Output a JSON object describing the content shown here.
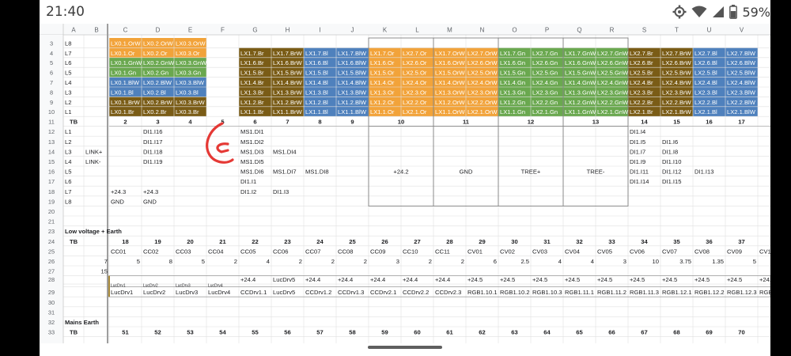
{
  "status_bar": {
    "time": "21:40",
    "battery_percent": "59%",
    "icons": [
      "gear-icon",
      "wifi-icon",
      "signal-icon",
      "battery-icon"
    ]
  },
  "colors": {
    "orange": "#f2a33a",
    "brown": "#7a5c16",
    "green": "#6aa84f",
    "blue": "#4f81bd",
    "header_bg": "#f8f9fa",
    "grid": "#e0e0e0",
    "outline": "#808080",
    "text": "#202124",
    "pen": "#e53935"
  },
  "columns": [
    "A",
    "B",
    "C",
    "D",
    "E",
    "F",
    "G",
    "H",
    "I",
    "J",
    "K",
    "L",
    "M",
    "N",
    "O",
    "P",
    "Q",
    "R",
    "S",
    "T",
    "U",
    "V",
    "W",
    "X"
  ],
  "sections": {
    "low_voltage": "Low voltage + Earth",
    "mains": "Mains Earth"
  },
  "rows": [
    {
      "n": "3",
      "cells": {
        "A": "L8",
        "C": "LX0.1.OrW",
        "D": "LX0.2.OrW",
        "E": "LX0.3.OrW"
      }
    },
    {
      "n": "4",
      "cells": {
        "A": "L7",
        "C": "LX0.1.Or",
        "D": "LX0.2.Or",
        "E": "LX0.3.Or",
        "G": "LX1.7.Br",
        "H": "LX1.7.BrW",
        "I": "LX1.7.Bl",
        "J": "LX1.7.BlW",
        "K": "LX1.7.Or",
        "L": "LX2.7.Or",
        "M": "LX1.7.OrW",
        "N": "LX2.7.OrW",
        "O": "LX1.7.Gn",
        "P": "LX2.7.Gn",
        "Q": "LX1.7.GnW",
        "R": "LX2.7.GnW",
        "S": "LX2.7.Br",
        "T": "LX2.7.BrW",
        "U": "LX2.7.Bl",
        "V": "LX2.7.BlW"
      }
    },
    {
      "n": "5",
      "cells": {
        "A": "L6",
        "C": "LX0.1.GnW",
        "D": "LX0.2.GnW",
        "E": "LX0.3.GnW",
        "G": "LX1.6.Br",
        "H": "LX1.6.BrW",
        "I": "LX1.6.Bl",
        "J": "LX1.6.BlW",
        "K": "LX1.6.Or",
        "L": "LX2.6.Or",
        "M": "LX1.6.OrW",
        "N": "LX2.6.OrW",
        "O": "LX1.6.Gn",
        "P": "LX2.6.Gn",
        "Q": "LX1.6.GnW",
        "R": "LX2.6.GnW",
        "S": "LX2.6.Br",
        "T": "LX2.6.BrW",
        "U": "LX2.6.Bl",
        "V": "LX2.6.BlW"
      }
    },
    {
      "n": "6",
      "cells": {
        "A": "L5",
        "C": "LX0.1.Gn",
        "D": "LX0.2.Gn",
        "E": "LX0.3.Gn",
        "G": "LX1.5.Br",
        "H": "LX1.5.BrW",
        "I": "LX1.5.Bl",
        "J": "LX1.5.BlW",
        "K": "LX1.5.Or",
        "L": "LX2.5.Or",
        "M": "LX1.5.OrW",
        "N": "LX2.5.OrW",
        "O": "LX1.5.Gn",
        "P": "LX2.5.Gn",
        "Q": "LX1.5.GnW",
        "R": "LX2.5.GnW",
        "S": "LX2.5.Br",
        "T": "LX2.5.BrW",
        "U": "LX2.5.Bl",
        "V": "LX2.5.BlW"
      }
    },
    {
      "n": "7",
      "cells": {
        "A": "L4",
        "C": "LX0.1.BlW",
        "D": "LX0.2.BlW",
        "E": "LX0.3.BlW",
        "G": "LX1.4.Br",
        "H": "LX1.4.BrW",
        "I": "LX1.4.Bl",
        "J": "LX1.4.BlW",
        "K": "LX1.4.Or",
        "L": "LX2.4.Or",
        "M": "LX1.4.OrW",
        "N": "LX2.4.OrW",
        "O": "LX1.4.Gn",
        "P": "LX2.4.Gn",
        "Q": "LX1.4.GnW",
        "R": "LX2.4.GnW",
        "S": "LX2.4.Br",
        "T": "LX2.4.BrW",
        "U": "LX2.4.Bl",
        "V": "LX2.4.BlW"
      }
    },
    {
      "n": "8",
      "cells": {
        "A": "L3",
        "C": "LX0.1.Bl",
        "D": "LX0.2.Bl",
        "E": "LX0.3.Bl",
        "G": "LX1.3.Br",
        "H": "LX1.3.BrW",
        "I": "LX1.3.Bl",
        "J": "LX1.3.BlW",
        "K": "LX1.3.Or",
        "L": "LX2.3.Or",
        "M": "LX1.3.OrW",
        "N": "LX2.3.OrW",
        "O": "LX1.3.Gn",
        "P": "LX2.3.Gn",
        "Q": "LX1.3.GnW",
        "R": "LX2.3.GnW",
        "S": "LX2.3.Br",
        "T": "LX2.3.BrW",
        "U": "LX2.3.Bl",
        "V": "LX2.3.BlW"
      }
    },
    {
      "n": "9",
      "cells": {
        "A": "L2",
        "C": "LX0.1.BrW",
        "D": "LX0.2.BrW",
        "E": "LX0.3.BrW",
        "G": "LX1.2.Br",
        "H": "LX1.2.BrW",
        "I": "LX1.2.Bl",
        "J": "LX1.2.BlW",
        "K": "LX1.2.Or",
        "L": "LX2.2.Or",
        "M": "LX1.2.OrW",
        "N": "LX2.2.OrW",
        "O": "LX1.2.Gn",
        "P": "LX2.2.Gn",
        "Q": "LX1.2.GnW",
        "R": "LX2.2.GnW",
        "S": "LX2.2.Br",
        "T": "LX2.2.BrW",
        "U": "LX2.2.Bl",
        "V": "LX2.2.BlW"
      }
    },
    {
      "n": "10",
      "cells": {
        "A": "L1",
        "C": "LX0.1.Br",
        "D": "LX0.2.Br",
        "E": "LX0.3.Br",
        "G": "LX1.1.Br",
        "H": "LX1.1.BrW",
        "I": "LX1.1.Bl",
        "J": "LX1.1.BlW",
        "K": "LX1.1.Or",
        "L": "LX2.1.Or",
        "M": "LX1.1.OrW",
        "N": "LX2.1.OrW",
        "O": "LX1.1.Gn",
        "P": "LX2.1.Gn",
        "Q": "LX1.1.GnW",
        "R": "LX2.1.GnW",
        "S": "LX2.1.Br",
        "T": "LX2.1.BrW",
        "U": "LX2.1.Bl",
        "V": "LX2.1.BlW"
      }
    },
    {
      "n": "11",
      "cells": {
        "A": "TB",
        "C": "2",
        "D": "3",
        "E": "4",
        "F": "5",
        "G": "6",
        "H": "7",
        "I": "8",
        "J": "9",
        "K": "10",
        "M": "11",
        "O": "12",
        "Q": "13",
        "S": "14",
        "T": "15",
        "U": "16",
        "V": "17"
      }
    },
    {
      "n": "12",
      "cells": {
        "A": "L1",
        "D": "DI1.I16",
        "G": "MS1.DI1",
        "S": "DI1.I4"
      }
    },
    {
      "n": "13",
      "cells": {
        "A": "L2",
        "D": "DI1.I17",
        "G": "MS1.DI2",
        "S": "DI1.I5",
        "T": "DI1.I6"
      }
    },
    {
      "n": "14",
      "cells": {
        "A": "L3",
        "B": "LINK+",
        "D": "DI1.I18",
        "G": "MS1.DI3",
        "H": "MS1.DI4",
        "S": "DI1.I7",
        "T": "DI1.I8"
      }
    },
    {
      "n": "15",
      "cells": {
        "A": "L4",
        "B": "LINK-",
        "D": "DI1.I19",
        "G": "MS1.DI5",
        "S": "DI1.I9",
        "T": "DI1.I10"
      }
    },
    {
      "n": "16",
      "cells": {
        "A": "L5",
        "G": "MS1.DI6",
        "H": "MS1.DI7",
        "I": "MS1.DI8",
        "K": "+24.2",
        "M": "GND",
        "O": "TREE+",
        "Q": "TREE-",
        "S": "DI1.I11",
        "T": "DI1.I12",
        "U": "DI1.I13"
      }
    },
    {
      "n": "17",
      "cells": {
        "A": "L6",
        "G": "DI1.I1",
        "S": "DI1.I14",
        "T": "DI1.I15"
      }
    },
    {
      "n": "18",
      "cells": {
        "A": "L7",
        "C": "+24.3",
        "D": "+24.3",
        "G": "DI1.I2",
        "H": "DI1.I3"
      }
    },
    {
      "n": "19",
      "cells": {
        "A": "L8",
        "C": "GND",
        "D": "GND"
      }
    },
    {
      "n": "20",
      "cells": {}
    },
    {
      "n": "21",
      "cells": {}
    },
    {
      "n": "23",
      "cells": {
        "A": "Low voltage + Earth"
      }
    },
    {
      "n": "24",
      "cells": {
        "A": "TB",
        "C": "18",
        "D": "19",
        "E": "20",
        "F": "21",
        "G": "22",
        "H": "23",
        "I": "24",
        "J": "25",
        "K": "26",
        "L": "27",
        "M": "28",
        "N": "29",
        "O": "30",
        "P": "31",
        "Q": "32",
        "R": "33",
        "S": "34",
        "T": "35",
        "U": "36",
        "V": "37",
        "W": "38",
        "X": "39"
      }
    },
    {
      "n": "25",
      "cells": {
        "C": "CC01",
        "D": "CC02",
        "E": "CC03",
        "F": "CC04",
        "G": "CC05",
        "H": "CC06",
        "I": "CC07",
        "J": "CC08",
        "K": "CC09",
        "L": "CC10",
        "M": "CC11",
        "N": "CV01",
        "O": "CV02",
        "P": "CV03",
        "Q": "CV04",
        "R": "CV05",
        "S": "CV06",
        "T": "CV07",
        "U": "CV08",
        "V": "CV09",
        "W": "CV10",
        "X": "CV11"
      }
    },
    {
      "n": "26",
      "cells": {
        "B": "7",
        "C": "5",
        "D": "8",
        "E": "5",
        "F": "2",
        "G": "4",
        "H": "2",
        "I": "2",
        "J": "2",
        "K": "3",
        "L": "2",
        "M": "2",
        "N": "6",
        "O": "2.5",
        "P": "4",
        "Q": "4",
        "R": "3",
        "S": "10",
        "T": "3.75",
        "U": "1.35",
        "V": "5",
        "W": "2",
        "X": "2"
      }
    },
    {
      "n": "27",
      "cells": {
        "B": "15"
      }
    },
    {
      "n": "28",
      "cells": {
        "G": "+24.4",
        "H": "LucDrv5",
        "I": "+24.4",
        "J": "+24.4",
        "K": "+24.4",
        "L": "+24.4",
        "M": "+24.4",
        "N": "+24.5",
        "O": "+24.5",
        "P": "+24.5",
        "Q": "+24.5",
        "R": "+24.5",
        "S": "+24.5",
        "T": "+24.5",
        "U": "+24.5",
        "V": "+24.5",
        "W": "+24.6",
        "X": "+24.6"
      }
    },
    {
      "n": "28b",
      "cells": {
        "C": "LucDrv1",
        "D": "LucDrv2",
        "E": "LucDrv3",
        "F": "LucDrv4"
      }
    },
    {
      "n": "29",
      "cells": {
        "C": "LucDrv1",
        "D": "LucDrv2",
        "E": "LucDrv3",
        "F": "LucDrv4",
        "G": "CCDrv1.1",
        "H": "LucDrv5",
        "I": "CCDrv1.2",
        "J": "CCDrv1.3",
        "K": "CCDrv2.1",
        "L": "CCDrv2.2",
        "M": "CCDrv2.3",
        "N": "RGB1.10.1",
        "O": "RGB1.10.2",
        "P": "RGB1.10.3",
        "Q": "RGB1.11.1",
        "R": "RGB1.11.2",
        "S": "RGB1.11.3",
        "T": "RGB1.12.1",
        "U": "RGB1.12.2",
        "V": "RGB1.12.3",
        "W": "RGB1.13.1",
        "X": "RGB1.13."
      }
    },
    {
      "n": "30",
      "cells": {}
    },
    {
      "n": "31",
      "cells": {}
    },
    {
      "n": "32",
      "cells": {
        "A": "Mains Earth"
      }
    },
    {
      "n": "33",
      "cells": {
        "A": "TB",
        "C": "51",
        "D": "52",
        "E": "53",
        "F": "54",
        "G": "55",
        "H": "56",
        "I": "57",
        "J": "58",
        "K": "59",
        "L": "60",
        "M": "61",
        "N": "62",
        "O": "63",
        "P": "64",
        "Q": "65",
        "R": "66",
        "S": "67",
        "T": "68",
        "U": "69",
        "V": "70",
        "W": "71",
        "X": "72"
      }
    }
  ]
}
